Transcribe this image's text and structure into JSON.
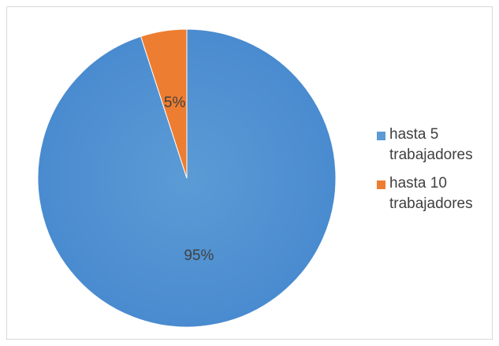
{
  "chart_data": {
    "type": "pie",
    "title": "",
    "start_angle_deg": 90,
    "direction": "clockwise",
    "slices": [
      {
        "name": "hasta 5\ntrabajadores",
        "value": 95,
        "label": "95%",
        "color": "#5b9bd5"
      },
      {
        "name": "hasta 10\ntrabajadores",
        "value": 5,
        "label": "5%",
        "color": "#ed7d31"
      }
    ],
    "legend_position": "right"
  }
}
